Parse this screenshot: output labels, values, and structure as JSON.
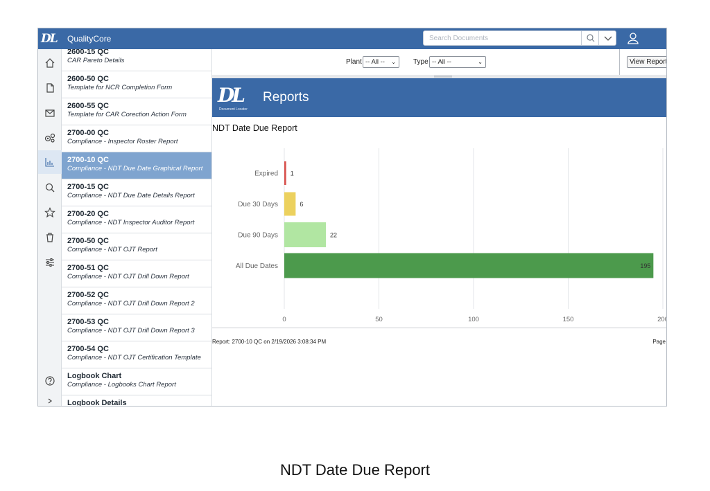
{
  "app": {
    "logo_text": "DL",
    "title": "QualityCore"
  },
  "search": {
    "placeholder": "Search Documents"
  },
  "rail": {
    "items": [
      {
        "icon": "home-icon"
      },
      {
        "icon": "document-icon"
      },
      {
        "icon": "inbox-icon"
      },
      {
        "icon": "gears-icon"
      },
      {
        "icon": "bar-chart-icon",
        "active": true
      },
      {
        "icon": "search-icon"
      },
      {
        "icon": "star-icon"
      },
      {
        "icon": "trash-icon"
      },
      {
        "icon": "sliders-icon"
      },
      {
        "icon": "help-icon"
      }
    ]
  },
  "list": {
    "items": [
      {
        "title": "2600-15 QC",
        "subtitle": "CAR Pareto Details"
      },
      {
        "title": "2600-50 QC",
        "subtitle": "Template for NCR Completion Form"
      },
      {
        "title": "2600-55 QC",
        "subtitle": "Template for CAR Corection Action Form"
      },
      {
        "title": "2700-00 QC",
        "subtitle": "Compliance - Inspector Roster Report"
      },
      {
        "title": "2700-10 QC",
        "subtitle": "Compliance - NDT Due Date Graphical Report",
        "active": true
      },
      {
        "title": "2700-15 QC",
        "subtitle": "Compliance - NDT Due Date Details Report"
      },
      {
        "title": "2700-20 QC",
        "subtitle": "Compliance - NDT Inspector Auditor Report"
      },
      {
        "title": "2700-50 QC",
        "subtitle": "Compliance - NDT OJT Report"
      },
      {
        "title": "2700-51 QC",
        "subtitle": "Compliance - NDT OJT Drill Down Report"
      },
      {
        "title": "2700-52 QC",
        "subtitle": "Compliance - NDT OJT Drill Down Report 2"
      },
      {
        "title": "2700-53 QC",
        "subtitle": "Compliance - NDT OJT Drill Down Report 3"
      },
      {
        "title": "2700-54 QC",
        "subtitle": "Compliance - NDT OJT Certification Template"
      },
      {
        "title": "Logbook Chart",
        "subtitle": "Compliance - Logbooks Chart Report"
      },
      {
        "title": "Logbook Details",
        "subtitle": ""
      }
    ]
  },
  "params": {
    "plant_label": "Plant",
    "plant_value": "-- All --",
    "type_label": "Type",
    "type_value": "-- All --",
    "view_button": "View Report"
  },
  "banner": {
    "logo_text": "DL",
    "logo_sub": "Document Locator",
    "title": "Reports"
  },
  "report": {
    "title": "NDT Date Due Report",
    "footer_left": "Report: 2700-10 QC on 2/19/2026 3:08:34 PM",
    "footer_right": "Page"
  },
  "chart_data": {
    "type": "bar",
    "orientation": "horizontal",
    "categories": [
      "Expired",
      "Due 30 Days",
      "Due 90 Days",
      "All Due Dates"
    ],
    "values": [
      1,
      6,
      22,
      195
    ],
    "colors": [
      "#d9534f",
      "#ecd15e",
      "#b1e6a2",
      "#4c9a4c"
    ],
    "data_labels": [
      "1",
      "6",
      "22",
      "195"
    ],
    "xlim": [
      0,
      200
    ],
    "xticks": [
      0,
      50,
      100,
      150,
      200
    ],
    "grid": true
  },
  "caption": "NDT Date Due Report"
}
